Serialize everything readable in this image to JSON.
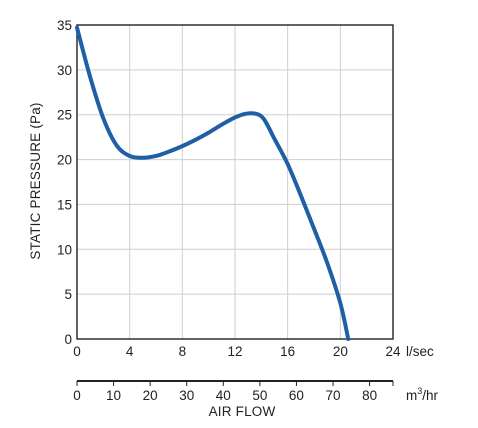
{
  "chart_data": {
    "type": "line",
    "title": "",
    "ylabel": "STATIC PRESSURE (Pa)",
    "xlabel": "AIR FLOW",
    "grid": true,
    "colors": {
      "curve": "#1f5fa6",
      "grid": "#cfcfcf",
      "axis": "#222222"
    },
    "x_axis": {
      "unit": "l/sec",
      "range": [
        0,
        24
      ],
      "ticks": [
        0,
        4,
        8,
        12,
        16,
        20,
        24
      ],
      "tick_labels": [
        "0",
        "4",
        "8",
        "12",
        "16",
        "20",
        "24"
      ]
    },
    "secondary_x_axis": {
      "unit_base": "m",
      "unit_exponent": "3",
      "unit_suffix": "/hr",
      "range": [
        0,
        86.4
      ],
      "ticks": [
        0,
        10,
        20,
        30,
        40,
        50,
        60,
        70,
        80
      ],
      "tick_labels": [
        "0",
        "10",
        "20",
        "30",
        "40",
        "50",
        "60",
        "70",
        "80"
      ]
    },
    "y_axis": {
      "range": [
        0,
        35
      ],
      "ticks": [
        0,
        5,
        10,
        15,
        20,
        25,
        30,
        35
      ],
      "tick_labels": [
        "0",
        "5",
        "10",
        "15",
        "20",
        "25",
        "30",
        "35"
      ]
    },
    "series": [
      {
        "x": [
          0,
          1,
          2,
          3,
          4,
          5,
          6,
          7,
          8,
          9,
          10,
          11,
          12,
          12.8,
          13.6,
          14.2,
          15,
          16,
          17,
          18,
          19,
          20,
          20.6
        ],
        "y": [
          34.7,
          29.2,
          24.6,
          21.6,
          20.4,
          20.2,
          20.4,
          20.9,
          21.5,
          22.2,
          23.0,
          23.9,
          24.7,
          25.1,
          25.1,
          24.5,
          22.3,
          19.5,
          16.0,
          12.3,
          8.5,
          4.0,
          0
        ]
      }
    ]
  }
}
